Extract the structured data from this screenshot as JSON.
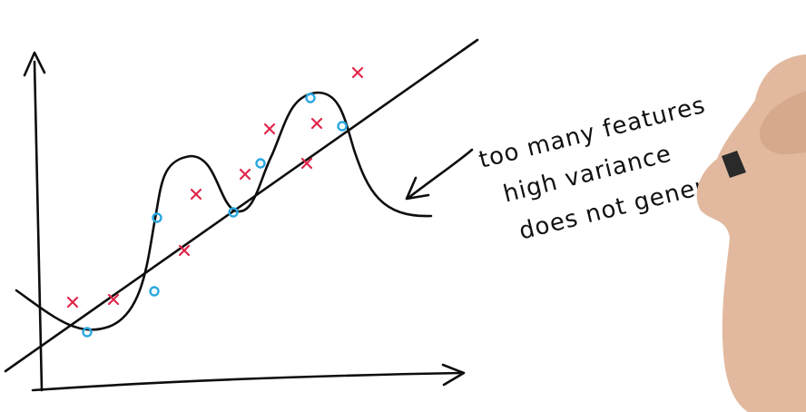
{
  "annotation": {
    "line1": "too many features",
    "line2": "high variance",
    "line3": "does not generalize well"
  },
  "colors": {
    "ink": "#0d0d0d",
    "cross": "#e0264a",
    "circle": "#2aa7df",
    "skin": "#e2b99f"
  },
  "legend_markers": {
    "cross": "x",
    "circle": "o"
  }
}
